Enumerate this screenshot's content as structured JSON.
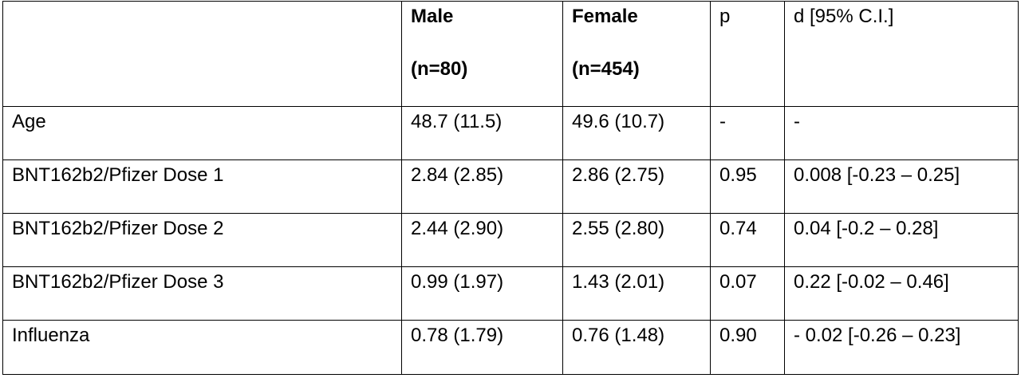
{
  "table": {
    "header": {
      "empty": "",
      "male": {
        "label": "Male",
        "n": "(n=80)"
      },
      "female": {
        "label": "Female",
        "n": "(n=454)"
      },
      "p": "p",
      "d": "d [95% C.I.]"
    },
    "rows": [
      {
        "label": "Age",
        "male": "48.7 (11.5)",
        "female": "49.6 (10.7)",
        "p": "-",
        "d": "-"
      },
      {
        "label": "BNT162b2/Pfizer Dose 1",
        "male": "2.84 (2.85)",
        "female": "2.86 (2.75)",
        "p": "0.95",
        "d": "0.008 [-0.23 – 0.25]"
      },
      {
        "label": "BNT162b2/Pfizer Dose 2",
        "male": "2.44 (2.90)",
        "female": "2.55 (2.80)",
        "p": "0.74",
        "d": "0.04 [-0.2 – 0.28]"
      },
      {
        "label": "BNT162b2/Pfizer Dose 3",
        "male": "0.99 (1.97)",
        "female": "1.43 (2.01)",
        "p": "0.07",
        "d": "0.22 [-0.02 – 0.46]"
      },
      {
        "label": "Influenza",
        "male": "0.78 (1.79)",
        "female": "0.76 (1.48)",
        "p": "0.90",
        "d": "- 0.02 [-0.26 – 0.23]"
      }
    ]
  }
}
